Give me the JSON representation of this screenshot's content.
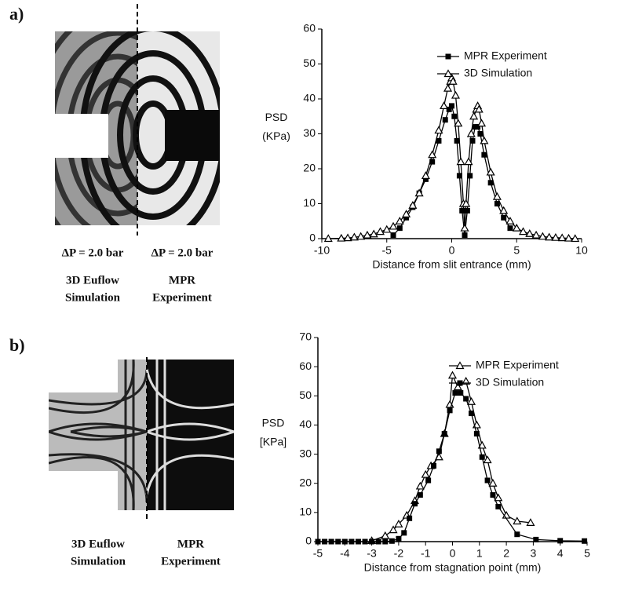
{
  "panels": [
    {
      "label": "a)",
      "pressure_left": "ΔP = 2.0 bar",
      "pressure_right": "ΔP = 2.0 bar",
      "left_caption": [
        "3D Euflow",
        "Simulation"
      ],
      "right_caption": [
        "MPR",
        "Experiment"
      ]
    },
    {
      "label": "b)",
      "left_caption": [
        "3D Euflow",
        "Simulation"
      ],
      "right_caption": [
        "MPR",
        "Experiment"
      ]
    }
  ],
  "chart_data": [
    {
      "type": "line",
      "xlabel": "Distance from slit entrance (mm)",
      "ylabel": [
        "PSD",
        "(KPa)"
      ],
      "xlim": [
        -10,
        10
      ],
      "xticks": [
        -10,
        -5,
        0,
        5,
        10
      ],
      "ylim": [
        0,
        60
      ],
      "yticks": [
        0,
        10,
        20,
        30,
        40,
        50,
        60
      ],
      "legend": "upper right",
      "series": [
        {
          "name": "MPR Experiment",
          "color": "#000000",
          "marker": "square",
          "x": [
            -4.5,
            -4,
            -3.5,
            -3,
            -2.5,
            -2,
            -1.5,
            -1,
            -0.5,
            -0.2,
            0,
            0.2,
            0.4,
            0.6,
            0.8,
            1,
            1.2,
            1.4,
            1.6,
            1.8,
            2,
            2.2,
            2.5,
            3,
            3.5,
            4,
            4.5
          ],
          "values": [
            1,
            3,
            6,
            9,
            13,
            17,
            22,
            28,
            34,
            37,
            38,
            35,
            28,
            18,
            8,
            1,
            8,
            18,
            28,
            32,
            32,
            30,
            24,
            16,
            10,
            6,
            3
          ]
        },
        {
          "name": "3D Simulation",
          "color": "#000000",
          "marker": "triangle",
          "x": [
            -9.5,
            -8.5,
            -8,
            -7.5,
            -7,
            -6.5,
            -6,
            -5.5,
            -5,
            -4.5,
            -4,
            -3.5,
            -3,
            -2.5,
            -2,
            -1.5,
            -1,
            -0.6,
            -0.3,
            -0.1,
            0,
            0.1,
            0.3,
            0.5,
            0.7,
            0.9,
            1,
            1.1,
            1.3,
            1.5,
            1.7,
            1.9,
            2,
            2.1,
            2.3,
            2.5,
            3,
            3.5,
            4,
            4.5,
            5,
            5.5,
            6,
            6.5,
            7,
            7.5,
            8,
            8.5,
            9,
            9.5
          ],
          "values": [
            0,
            0.1,
            0.2,
            0.4,
            0.6,
            1,
            1.3,
            2,
            2.6,
            3.5,
            5,
            7,
            9.5,
            13,
            18,
            24,
            31,
            38,
            43,
            45,
            46,
            45,
            41,
            33,
            22,
            10,
            3,
            10,
            22,
            30,
            35,
            37,
            38,
            37,
            33,
            28,
            19,
            12,
            8,
            5,
            3,
            2,
            1.4,
            1,
            0.6,
            0.4,
            0.3,
            0.2,
            0.1,
            0
          ]
        }
      ]
    },
    {
      "type": "line",
      "xlabel": "Distance from stagnation point (mm)",
      "ylabel": [
        "PSD",
        "[KPa]"
      ],
      "xlim": [
        -5,
        5
      ],
      "xticks": [
        -5,
        -4,
        -3,
        -2,
        -1,
        0,
        1,
        2,
        3,
        4,
        5
      ],
      "ylim": [
        0,
        70
      ],
      "yticks": [
        0,
        10,
        20,
        30,
        40,
        50,
        60,
        70
      ],
      "legend": "upper right",
      "series": [
        {
          "name": "MPR Experiment",
          "color": "#000000",
          "marker": "triangle",
          "x": [
            -3,
            -2.5,
            -2.2,
            -2,
            -1.7,
            -1.4,
            -1.2,
            -1,
            -0.8,
            -0.5,
            -0.3,
            -0.1,
            0,
            0.2,
            0.5,
            0.7,
            0.9,
            1.1,
            1.3,
            1.5,
            1.7,
            2,
            2.4,
            2.9
          ],
          "values": [
            0.3,
            2,
            4,
            6,
            9,
            14,
            19,
            23,
            26,
            29,
            37,
            47,
            57,
            53,
            55,
            48,
            40,
            33,
            28,
            20,
            15,
            9,
            7,
            6.5
          ]
        },
        {
          "name": "3D Simulation",
          "color": "#000000",
          "marker": "square",
          "x": [
            -5,
            -4.75,
            -4.5,
            -4.25,
            -4,
            -3.75,
            -3.5,
            -3.25,
            -3,
            -2.75,
            -2.5,
            -2.25,
            -2,
            -1.8,
            -1.6,
            -1.4,
            -1.2,
            -0.9,
            -0.7,
            -0.5,
            -0.3,
            -0.1,
            0.1,
            0.3,
            0.5,
            0.7,
            0.9,
            1.1,
            1.3,
            1.5,
            1.7,
            2.4,
            3.1,
            4,
            4.9
          ],
          "values": [
            0,
            0,
            0,
            0,
            0,
            0,
            0,
            0,
            0,
            0,
            0,
            0.2,
            1,
            3,
            8,
            13,
            16,
            21,
            26,
            31,
            37,
            45,
            51,
            51,
            49,
            44,
            37,
            29,
            21,
            16,
            12,
            2.5,
            0.7,
            0.3,
            0.2
          ]
        }
      ]
    }
  ]
}
